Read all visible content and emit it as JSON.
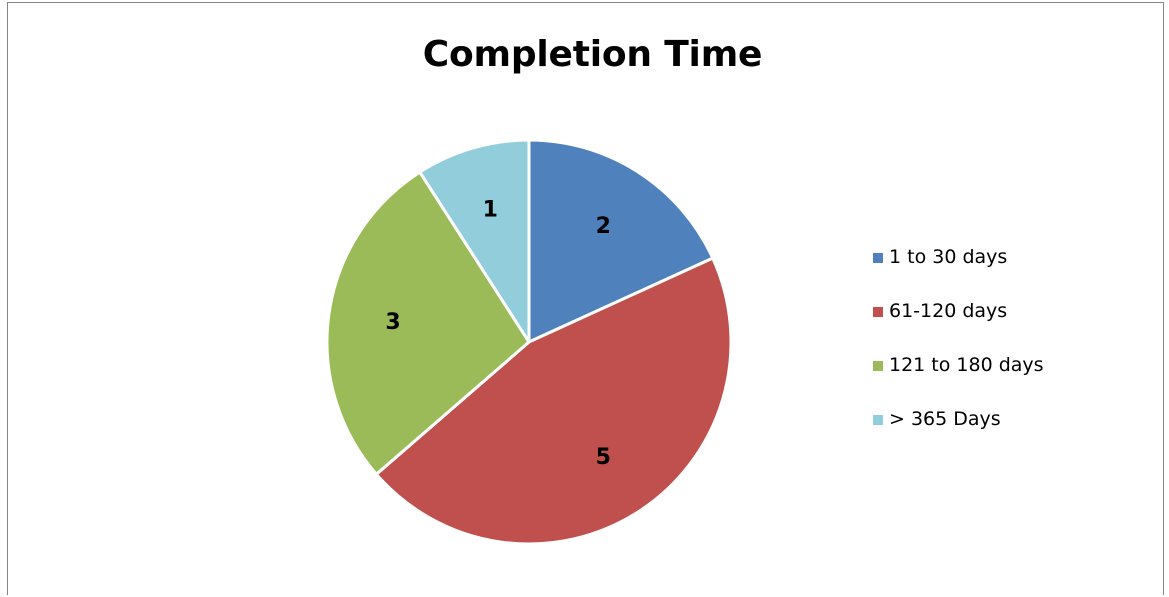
{
  "chart_data": {
    "type": "pie",
    "title": "Completion Time",
    "categories": [
      "1 to 30 days",
      "61-120 days",
      "121 to 180 days",
      "> 365 Days"
    ],
    "values": [
      2,
      5,
      3,
      1
    ],
    "data_labels": [
      "2",
      "5",
      "3",
      "1"
    ],
    "colors": [
      "#4F81BD",
      "#C0504D",
      "#9BBB59",
      "#92CDDC"
    ],
    "start_angle_deg": 0,
    "direction": "clockwise",
    "legend_position": "right",
    "slice_border_color": "#FFFFFF"
  },
  "legend": {
    "items": [
      {
        "label": "1 to 30 days",
        "color": "#4F81BD"
      },
      {
        "label": "61-120 days",
        "color": "#C0504D"
      },
      {
        "label": "121 to 180 days",
        "color": "#9BBB59"
      },
      {
        "label": "> 365 Days",
        "color": "#92CDDC"
      }
    ]
  }
}
